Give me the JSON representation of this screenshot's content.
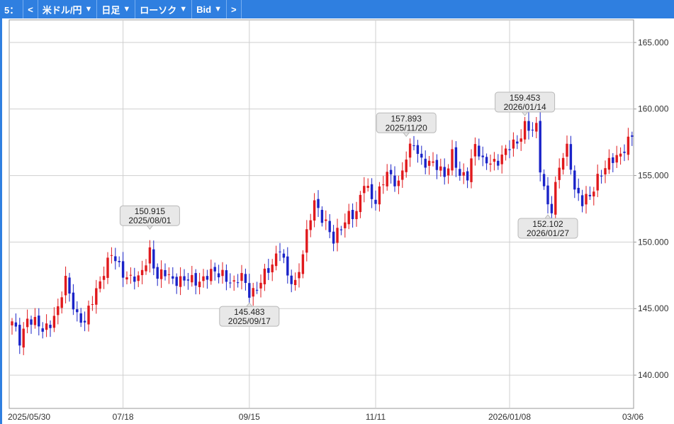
{
  "toolbar": {
    "slot_label": "5：",
    "prev_label": "<",
    "symbol_label": "米ドル/円",
    "period_label": "日足",
    "chart_type_label": "ローソク",
    "price_type_label": "Bid",
    "next_label": ">",
    "dropdown_arrow": "▼"
  },
  "colors": {
    "toolbar_bg": "#2f7fe0",
    "up_candle": "#e0191d",
    "down_candle": "#1a23c8",
    "grid": "#cfcfcf",
    "callout_bg": "#e8e8e8"
  },
  "chart_data": {
    "type": "candlestick",
    "ylim": [
      137.5,
      166.7
    ],
    "y_ticks": [
      "140.000",
      "145.000",
      "150.000",
      "155.000",
      "160.000",
      "165.000"
    ],
    "x_ticks": [
      "2025/05/30",
      "07/18",
      "09/15",
      "11/11",
      "2026/01/08",
      "03/06"
    ],
    "grid": true,
    "callouts": [
      {
        "value": "150.915",
        "date": "2025/08/01",
        "type": "high"
      },
      {
        "value": "145.483",
        "date": "2025/09/17",
        "type": "low"
      },
      {
        "value": "157.893",
        "date": "2025/11/20",
        "type": "high"
      },
      {
        "value": "159.453",
        "date": "2026/01/14",
        "type": "high"
      },
      {
        "value": "152.102",
        "date": "2026/01/27",
        "type": "low"
      }
    ],
    "key_points": [
      [
        0,
        143.8
      ],
      [
        2,
        142.6
      ],
      [
        4,
        144.4
      ],
      [
        8,
        143.3
      ],
      [
        12,
        144.9
      ],
      [
        14,
        147.0
      ],
      [
        17,
        144.6
      ],
      [
        19,
        143.8
      ],
      [
        22,
        146.5
      ],
      [
        24,
        147.9
      ],
      [
        26,
        148.9
      ],
      [
        30,
        147.5
      ],
      [
        33,
        147.0
      ],
      [
        36,
        149.5
      ],
      [
        38,
        147.2
      ],
      [
        40,
        147.6
      ],
      [
        45,
        147.0
      ],
      [
        50,
        147.3
      ],
      [
        55,
        147.8
      ],
      [
        58,
        146.6
      ],
      [
        60,
        147.5
      ],
      [
        62,
        146.4
      ],
      [
        64,
        146.3
      ],
      [
        66,
        147.5
      ],
      [
        70,
        149.6
      ],
      [
        72,
        147.2
      ],
      [
        74,
        147.0
      ],
      [
        76,
        149.3
      ],
      [
        79,
        152.9
      ],
      [
        82,
        151.6
      ],
      [
        84,
        149.9
      ],
      [
        88,
        152.3
      ],
      [
        90,
        152.0
      ],
      [
        92,
        154.4
      ],
      [
        95,
        153.2
      ],
      [
        98,
        155.0
      ],
      [
        101,
        154.6
      ],
      [
        103,
        156.3
      ],
      [
        105,
        157.3
      ],
      [
        107,
        156.3
      ],
      [
        110,
        155.7
      ],
      [
        113,
        155.2
      ],
      [
        115,
        156.7
      ],
      [
        117,
        154.7
      ],
      [
        119,
        155.1
      ],
      [
        121,
        157.5
      ],
      [
        123,
        155.8
      ],
      [
        125,
        156.0
      ],
      [
        127,
        156.3
      ],
      [
        129,
        156.7
      ],
      [
        132,
        157.6
      ],
      [
        134,
        158.9
      ],
      [
        136,
        158.2
      ],
      [
        137,
        158.5
      ],
      [
        138,
        155.6
      ],
      [
        139,
        154.2
      ],
      [
        140,
        153.0
      ],
      [
        141,
        152.5
      ],
      [
        143,
        155.5
      ],
      [
        145,
        157.2
      ],
      [
        146,
        156.0
      ],
      [
        147,
        154.0
      ],
      [
        149,
        152.8
      ],
      [
        151,
        153.5
      ],
      [
        153,
        155.0
      ],
      [
        155,
        155.4
      ],
      [
        157,
        156.2
      ],
      [
        159,
        156.8
      ],
      [
        161,
        157.5
      ],
      [
        162,
        157.8
      ]
    ]
  }
}
